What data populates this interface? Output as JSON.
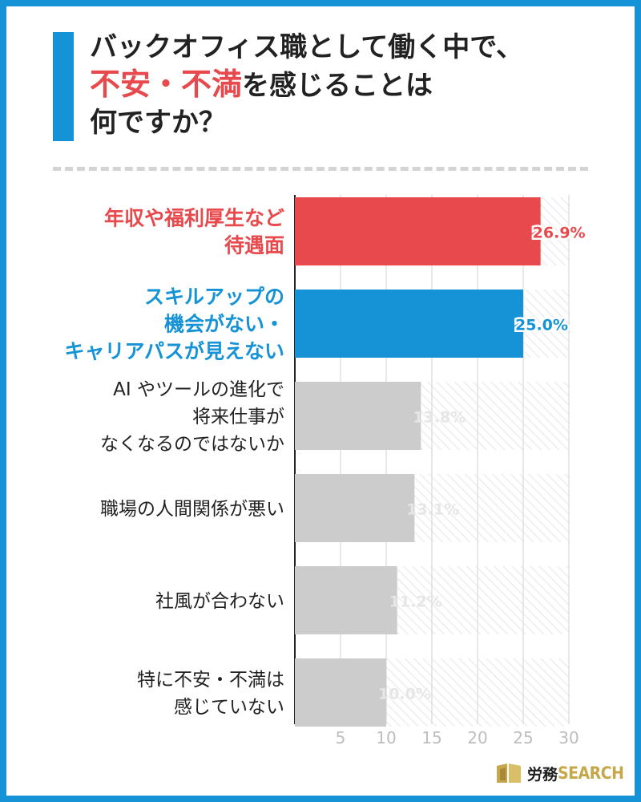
{
  "title": {
    "line1": "バックオフィス職として働く中で、",
    "line2_highlight": "不安・不満",
    "line2_rest": "を感じることは",
    "line3": "何ですか？"
  },
  "chart_data": {
    "type": "bar",
    "orientation": "horizontal",
    "categories": [
      [
        "年収や福利厚生など",
        "待遇面"
      ],
      [
        "スキルアップの",
        "機会がない・",
        "キャリアパスが見えない"
      ],
      [
        "AI やツールの進化で",
        "将来仕事が",
        "なくなるのではないか"
      ],
      [
        "職場の人間関係が悪い"
      ],
      [
        "社風が合わない"
      ],
      [
        "特に不安・不満は",
        "感じていない"
      ]
    ],
    "values": [
      26.9,
      25.0,
      13.8,
      13.1,
      11.2,
      10.0
    ],
    "value_labels": [
      "26.9%",
      "25.0%",
      "13.8%",
      "13.1%",
      "11.2%",
      "10.0%"
    ],
    "bar_colors": [
      "#e8494d",
      "#1593d6",
      "#cccccc",
      "#cccccc",
      "#cccccc",
      "#cccccc"
    ],
    "label_colors": [
      "#e8494d",
      "#1593d6",
      "#222222",
      "#222222",
      "#222222",
      "#222222"
    ],
    "xticks": [
      "5",
      "10",
      "15",
      "20",
      "25",
      "30"
    ],
    "xlim": [
      0,
      30
    ],
    "grid": true
  },
  "logo": {
    "text_a": "労務",
    "text_b": "SEARCH"
  },
  "colors": {
    "frame": "#1593d6",
    "accent_red": "#e8494d",
    "accent_blue": "#1593d6",
    "gray_bar": "#cccccc",
    "logo_gold": "#c6a84a"
  }
}
